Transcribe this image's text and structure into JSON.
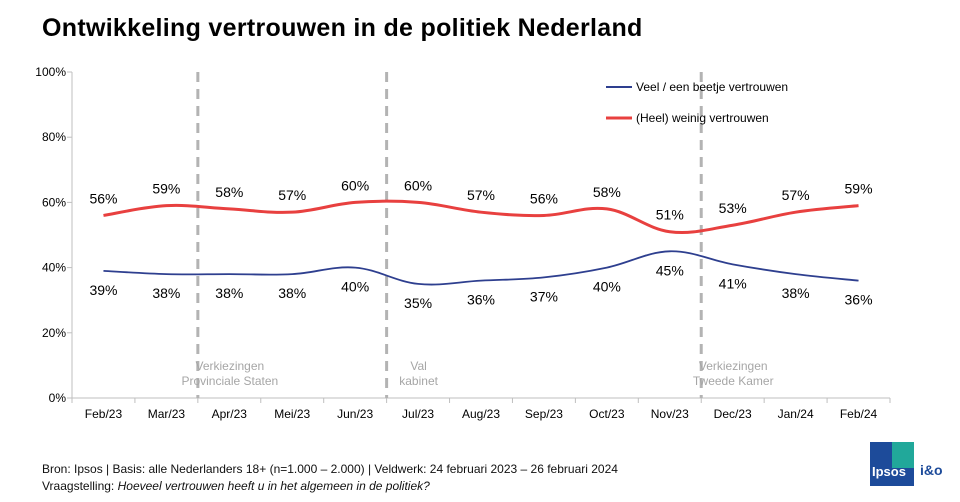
{
  "title": "Ontwikkeling vertrouwen in de politiek Nederland",
  "chart_data": {
    "type": "line",
    "categories": [
      "Feb/23",
      "Mar/23",
      "Apr/23",
      "Mei/23",
      "Jun/23",
      "Jul/23",
      "Aug/23",
      "Sep/23",
      "Oct/23",
      "Nov/23",
      "Dec/23",
      "Jan/24",
      "Feb/24"
    ],
    "ylim": [
      0,
      100
    ],
    "yticks": [
      "0%",
      "20%",
      "40%",
      "60%",
      "80%",
      "100%"
    ],
    "grid": false,
    "legend_position": "top-right",
    "series": [
      {
        "name": "Veel / een beetje vertrouwen",
        "color": "#2e3f8f",
        "values": [
          39,
          38,
          38,
          38,
          40,
          35,
          36,
          37,
          40,
          45,
          41,
          38,
          36
        ],
        "labels": [
          "39%",
          "38%",
          "38%",
          "38%",
          "40%",
          "35%",
          "36%",
          "37%",
          "40%",
          "45%",
          "41%",
          "38%",
          "36%"
        ]
      },
      {
        "name": "(Heel) weinig vertrouwen",
        "color": "#e8403f",
        "values": [
          56,
          59,
          58,
          57,
          60,
          60,
          57,
          56,
          58,
          51,
          53,
          57,
          59
        ],
        "labels": [
          "56%",
          "59%",
          "58%",
          "57%",
          "60%",
          "60%",
          "57%",
          "56%",
          "58%",
          "51%",
          "53%",
          "57%",
          "59%"
        ]
      }
    ],
    "events": [
      {
        "after_index": 1,
        "lines": [
          "Verkiezingen",
          "Provinciale  Staten"
        ]
      },
      {
        "after_index": 4,
        "lines": [
          "Val",
          "kabinet"
        ]
      },
      {
        "after_index": 9,
        "lines": [
          "Verkiezingen",
          "Tweede  Kamer"
        ]
      }
    ]
  },
  "footer": {
    "source": "Bron: Ipsos | Basis: alle Nederlanders  18+ (n=1.000 – 2.000) | Veldwerk: 24 februari  2023 – 26 februari  2024",
    "question_label": "Vraagstelling: ",
    "question_text": "Hoeveel vertrouwen  heeft u in het algemeen in de politiek?"
  },
  "logo": {
    "brand": "Ipsos",
    "partner": "i&o"
  }
}
